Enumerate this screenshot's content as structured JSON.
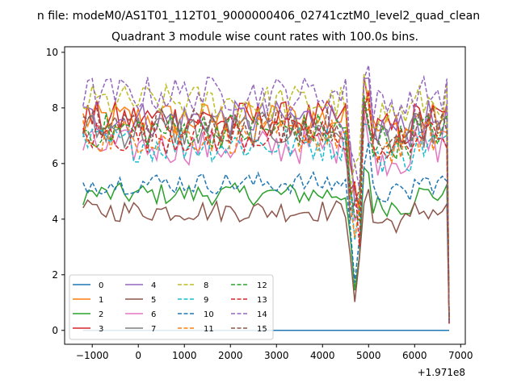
{
  "chart_data": {
    "type": "line",
    "suptitle": "n file: modeM0/AS1T01_112T01_9000000406_02741cztM0_level2_quad_clean",
    "title": "Quadrant 3 module wise count rates with 100.0s bins.",
    "xlabel": "",
    "ylabel": "",
    "x_offset_label": "+1.971e8",
    "xlim": [
      -1600,
      7100
    ],
    "ylim": [
      -0.5,
      10.2
    ],
    "x_ticks": [
      -1000,
      0,
      1000,
      2000,
      3000,
      4000,
      5000,
      6000,
      7000
    ],
    "x_tick_labels": [
      "−1000",
      "0",
      "1000",
      "2000",
      "3000",
      "4000",
      "5000",
      "6000",
      "7000"
    ],
    "y_ticks": [
      0,
      2,
      4,
      6,
      8,
      10
    ],
    "y_tick_labels": [
      "0",
      "2",
      "4",
      "6",
      "8",
      "10"
    ],
    "grid": false,
    "legend_position": "lower-left",
    "legend_columns": 4,
    "series": [
      {
        "name": "0",
        "color": "#1f77b4",
        "dash": "solid",
        "base": 0.0
      },
      {
        "name": "1",
        "color": "#ff7f0e",
        "dash": "solid",
        "base": 7.6
      },
      {
        "name": "2",
        "color": "#2ca02c",
        "dash": "solid",
        "base": 4.9
      },
      {
        "name": "3",
        "color": "#d62728",
        "dash": "solid",
        "base": 7.6
      },
      {
        "name": "4",
        "color": "#9467bd",
        "dash": "solid",
        "base": 7.6
      },
      {
        "name": "5",
        "color": "#8c564b",
        "dash": "solid",
        "base": 4.3
      },
      {
        "name": "6",
        "color": "#e377c2",
        "dash": "solid",
        "base": 6.6
      },
      {
        "name": "7",
        "color": "#7f7f7f",
        "dash": "solid",
        "base": 7.2
      },
      {
        "name": "8",
        "color": "#bcbd22",
        "dash": "dashed",
        "base": 8.2
      },
      {
        "name": "9",
        "color": "#17becf",
        "dash": "dashed",
        "base": 6.7
      },
      {
        "name": "10",
        "color": "#1f77b4",
        "dash": "dashed",
        "base": 5.3
      },
      {
        "name": "11",
        "color": "#ff7f0e",
        "dash": "dashed",
        "base": 7.0
      },
      {
        "name": "12",
        "color": "#2ca02c",
        "dash": "dashed",
        "base": 7.2
      },
      {
        "name": "13",
        "color": "#d62728",
        "dash": "dashed",
        "base": 7.0
      },
      {
        "name": "14",
        "color": "#9467bd",
        "dash": "dashed",
        "base": 8.5
      },
      {
        "name": "15",
        "color": "#8c564b",
        "dash": "dashed",
        "base": 7.4
      }
    ]
  }
}
